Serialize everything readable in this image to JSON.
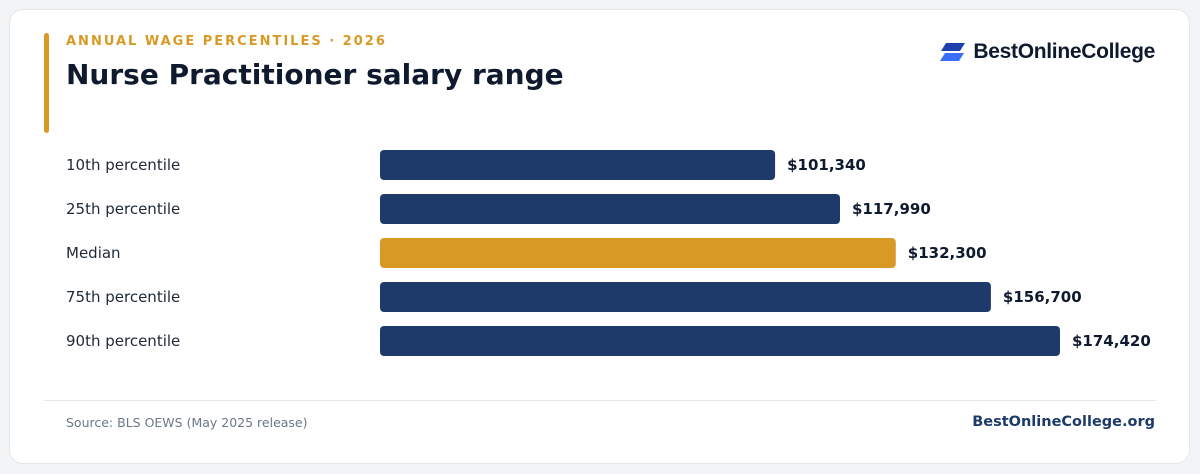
{
  "header": {
    "eyebrow": "ANNUAL WAGE PERCENTILES · 2026",
    "title": "Nurse Practitioner salary range"
  },
  "brand": {
    "logo_icon": "stacked-parallelograms-logo-icon",
    "name": "BestOnlineCollege",
    "site": "BestOnlineCollege.org"
  },
  "footer": {
    "source": "Source: BLS OEWS (May 2025 release)"
  },
  "colors": {
    "accent": "#d99a25",
    "bar": "#1e3a6b",
    "highlight_bar": "#d99a25",
    "title": "#0f1a2e",
    "label": "#1f2937",
    "muted": "#6b7788",
    "logo_blue_dark": "#1e3fae",
    "logo_blue_light": "#3b6ef6"
  },
  "chart_data": {
    "type": "bar",
    "orientation": "horizontal",
    "categories": [
      "10th percentile",
      "25th percentile",
      "Median",
      "75th percentile",
      "90th percentile"
    ],
    "values": [
      101340,
      117990,
      132300,
      156700,
      174420
    ],
    "value_labels": [
      "$101,340",
      "$117,990",
      "$132,300",
      "$156,700",
      "$174,420"
    ],
    "highlight_index": 2,
    "xlim": [
      0,
      174420
    ],
    "grid": false,
    "legend": "none"
  }
}
